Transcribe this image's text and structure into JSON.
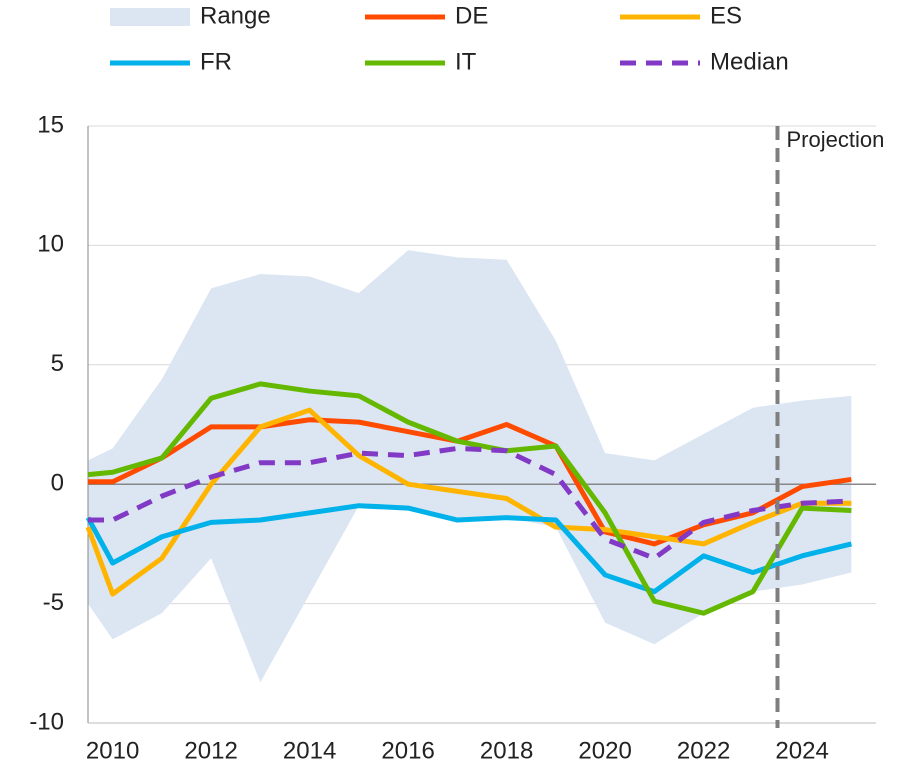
{
  "chart_data": {
    "type": "line",
    "x": [
      2009.5,
      2010,
      2011,
      2012,
      2013,
      2014,
      2015,
      2016,
      2017,
      2018,
      2019,
      2020,
      2021,
      2022,
      2023,
      2024,
      2025
    ],
    "series": [
      {
        "name": "Range",
        "color": "#dce6f2",
        "type": "area",
        "upper": [
          1.0,
          1.5,
          4.4,
          8.2,
          8.8,
          8.7,
          8.0,
          9.8,
          9.5,
          9.4,
          6.0,
          1.3,
          1.0,
          2.1,
          3.2,
          3.5,
          3.7
        ],
        "lower": [
          -5.0,
          -6.5,
          -5.4,
          -3.1,
          -8.3,
          -4.6,
          -0.9,
          -1.0,
          -1.5,
          -1.4,
          -1.8,
          -5.8,
          -6.7,
          -5.4,
          -4.5,
          -4.2,
          -3.7
        ]
      },
      {
        "name": "DE",
        "color": "#ff4b00",
        "values": [
          0.1,
          0.1,
          1.1,
          2.4,
          2.4,
          2.7,
          2.6,
          2.2,
          1.8,
          2.5,
          1.6,
          -2.0,
          -2.5,
          -1.7,
          -1.2,
          -0.1,
          0.2
        ]
      },
      {
        "name": "ES",
        "color": "#ffb400",
        "values": [
          -1.8,
          -4.6,
          -3.1,
          0,
          2.4,
          3.1,
          1.2,
          0,
          -0.3,
          -0.6,
          -1.8,
          -1.9,
          -2.2,
          -2.5,
          -1.6,
          -0.8,
          -0.8
        ]
      },
      {
        "name": "FR",
        "color": "#00b1ea",
        "values": [
          -1.4,
          -3.3,
          -2.2,
          -1.6,
          -1.5,
          -1.2,
          -0.9,
          -1.0,
          -1.5,
          -1.4,
          -1.5,
          -3.8,
          -4.5,
          -3.0,
          -3.7,
          -3.0,
          -2.5
        ]
      },
      {
        "name": "IT",
        "color": "#65b800",
        "values": [
          0.4,
          0.5,
          1.1,
          3.6,
          4.2,
          3.9,
          3.7,
          2.6,
          1.8,
          1.4,
          1.6,
          -1.2,
          -4.9,
          -5.4,
          -4.5,
          -1.0,
          -1.1
        ]
      },
      {
        "name": "Median",
        "color": "#8139c6",
        "dashed": true,
        "values": [
          -1.5,
          -1.5,
          -0.5,
          0.3,
          0.9,
          0.9,
          1.3,
          1.2,
          1.5,
          1.4,
          0.4,
          -2.3,
          -3.1,
          -1.6,
          -1.1,
          -0.8,
          -0.7
        ]
      }
    ],
    "xlim": [
      2009.5,
      2025.5
    ],
    "xticks": [
      2010,
      2012,
      2014,
      2016,
      2018,
      2020,
      2022,
      2024
    ],
    "ylim": [
      -10,
      15
    ],
    "yticks": [
      15,
      10,
      5,
      0,
      -5,
      -10
    ],
    "grid": true,
    "projection": {
      "x": 2023.5,
      "label": "Projection"
    }
  }
}
